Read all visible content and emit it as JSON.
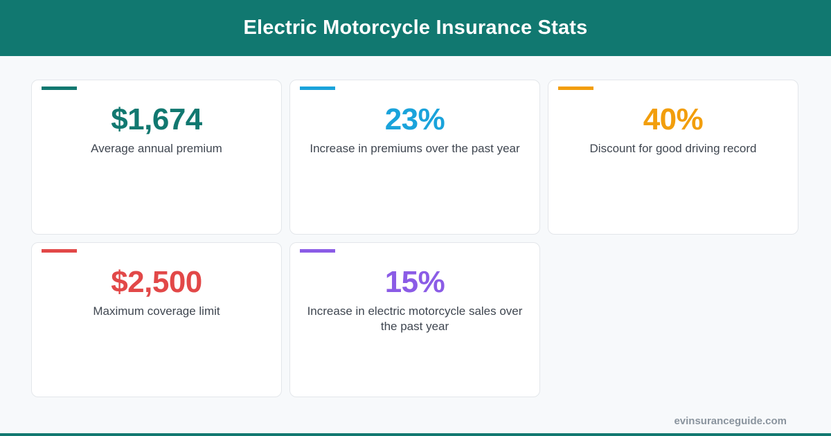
{
  "header": {
    "title": "Electric Motorcycle Insurance Stats"
  },
  "stats": [
    {
      "value": "$1,674",
      "label": "Average annual premium",
      "color": "#117870"
    },
    {
      "value": "23%",
      "label": "Increase in premiums over the past year",
      "color": "#1aa3db"
    },
    {
      "value": "40%",
      "label": "Discount for good driving record",
      "color": "#f29e0c"
    },
    {
      "value": "$2,500",
      "label": "Maximum coverage limit",
      "color": "#e24848"
    },
    {
      "value": "15%",
      "label": "Increase in electric motorcycle sales over the past year",
      "color": "#8b5ce6"
    }
  ],
  "footer": {
    "url": "evinsuranceguide.com",
    "color": "#117870"
  }
}
